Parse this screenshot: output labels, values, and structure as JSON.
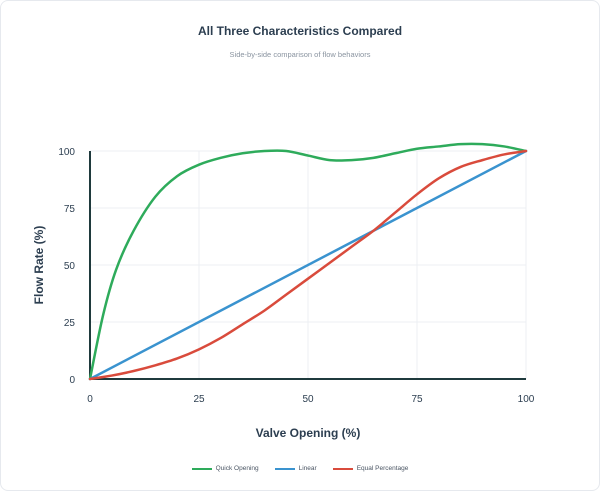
{
  "chart_data": {
    "type": "line",
    "title": "All Three Characteristics Compared",
    "subtitle": "Side-by-side comparison of flow behaviors",
    "xlabel": "Valve Opening (%)",
    "ylabel": "Flow Rate (%)",
    "xlim": [
      0,
      100
    ],
    "ylim": [
      0,
      100
    ],
    "xticks": [
      0,
      25,
      50,
      75,
      100
    ],
    "yticks": [
      0,
      25,
      50,
      75,
      100
    ],
    "grid": true,
    "legend_position": "bottom",
    "series": [
      {
        "name": "Quick Opening",
        "color": "#2eab5b",
        "x": [
          0,
          3,
          6,
          10,
          15,
          20,
          25,
          30,
          35,
          40,
          45,
          50,
          55,
          60,
          65,
          70,
          75,
          80,
          85,
          90,
          95,
          100
        ],
        "y": [
          0,
          28,
          48,
          65,
          80,
          89,
          94,
          97,
          99,
          100,
          100,
          98,
          96,
          96,
          97,
          99,
          101,
          102,
          103,
          103,
          102,
          100
        ]
      },
      {
        "name": "Linear",
        "color": "#3a93cf",
        "x": [
          0,
          100
        ],
        "y": [
          0,
          100
        ]
      },
      {
        "name": "Equal Percentage",
        "color": "#d94b3c",
        "x": [
          0,
          5,
          10,
          15,
          20,
          25,
          30,
          35,
          40,
          45,
          50,
          55,
          60,
          65,
          70,
          75,
          80,
          85,
          90,
          95,
          100
        ],
        "y": [
          0,
          1.5,
          3.5,
          6,
          9,
          13,
          18,
          24,
          30,
          37,
          44,
          51,
          58,
          65,
          73,
          81,
          88,
          93,
          96,
          98.5,
          100
        ]
      }
    ]
  }
}
